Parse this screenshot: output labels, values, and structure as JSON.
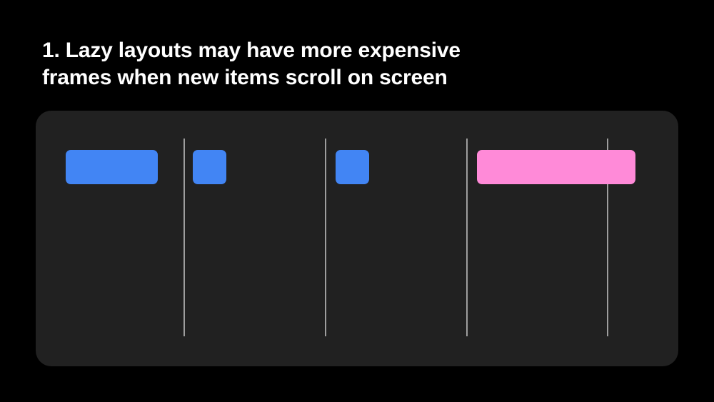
{
  "title_lines": [
    "1. Lazy layouts may have more expensive",
    "frames when new items scroll on screen"
  ],
  "colors": {
    "background": "#000000",
    "panel": "#212121",
    "normal_frame": "#4285f4",
    "expensive_frame": "#ff8ad8",
    "frame_boundary": "#9e9e9e"
  },
  "frames": [
    {
      "kind": "normal"
    },
    {
      "kind": "normal"
    },
    {
      "kind": "normal"
    },
    {
      "kind": "expensive"
    }
  ]
}
